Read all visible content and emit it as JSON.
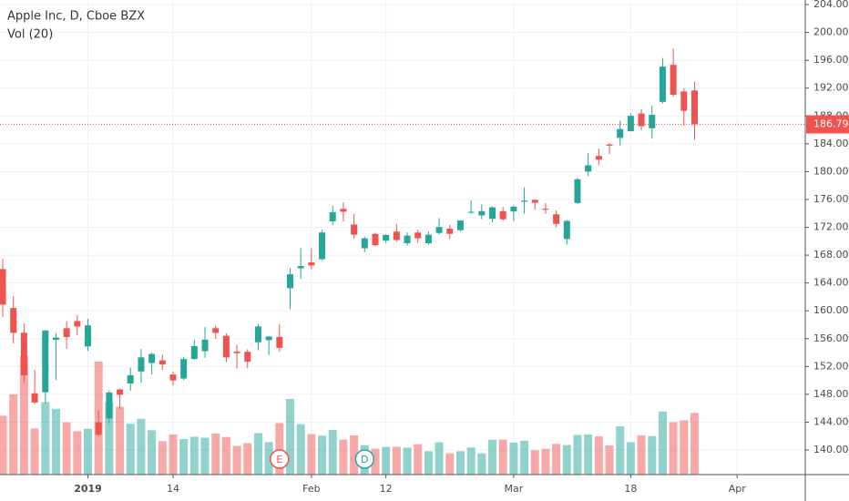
{
  "chart_data": {
    "type": "candlestick",
    "title": "Apple Inc, D, Cboe BZX",
    "subtitle": "Vol (20)",
    "open": [
      166,
      160.4,
      156.86,
      148.15,
      148.3,
      155.84,
      157.5,
      158.53,
      154.89,
      143.98,
      144.53,
      148.7,
      149.56,
      151.29,
      152.5,
      152.88,
      150.85,
      150.27,
      153.08,
      154.2,
      157.5,
      156.41,
      154.15,
      154.11,
      155.48,
      155.79,
      156.25,
      163.25,
      166.11,
      166.96,
      167.41,
      172.86,
      174.65,
      172.4,
      168.99,
      171.05,
      170.1,
      171.39,
      169.71,
      171.25,
      169.71,
      171.19,
      171.8,
      171.58,
      174.16,
      173.71,
      173.21,
      174.32,
      174.28,
      175.69,
      175.94,
      174.67,
      173.87,
      170.32,
      175.49,
      180,
      182.25,
      183.9,
      184.85,
      185.8,
      188.35,
      186.23,
      190.02,
      195.34,
      191.51,
      191.66
    ],
    "high": [
      167.45,
      162.11,
      158.16,
      151.55,
      157.23,
      156.77,
      158.52,
      159.36,
      158.85,
      145.72,
      148.55,
      148.83,
      151.82,
      154.53,
      153.97,
      153.7,
      151.27,
      153.39,
      155.88,
      157.66,
      157.88,
      156.73,
      155.14,
      154.48,
      158.13,
      156.33,
      158.13,
      166.15,
      169,
      168.98,
      171.66,
      175.08,
      175.57,
      173.94,
      170.66,
      171.21,
      171,
      172.48,
      171.26,
      171.7,
      171.44,
      173.32,
      172.37,
      173,
      175.87,
      175.3,
      175,
      174.91,
      175.15,
      177.75,
      176,
      175.49,
      174.44,
      173.07,
      179.12,
      182.67,
      183.3,
      184.1,
      187.33,
      188.39,
      188.99,
      189.49,
      196.33,
      197.69,
      191.98,
      192.88
    ],
    "low": [
      159.09,
      155.3,
      149.63,
      146.59,
      146.72,
      150.07,
      154.55,
      156.48,
      154.23,
      142,
      143.8,
      145.9,
      148.52,
      149.63,
      150.86,
      151.51,
      149.22,
      150.05,
      153,
      153.26,
      155.98,
      152.62,
      151.7,
      151.74,
      154.32,
      153.66,
      154.11,
      160.23,
      164.56,
      165.93,
      167.28,
      172.35,
      172.85,
      170.34,
      168.42,
      169.25,
      169.7,
      169.92,
      169.38,
      169.75,
      169.49,
      170.99,
      170.3,
      171.38,
      173.95,
      173.17,
      172.73,
      172.92,
      172.89,
      173.97,
      174.54,
      173.94,
      172.02,
      169.5,
      175.35,
      179.37,
      180.92,
      182.56,
      183.74,
      185.79,
      185.92,
      184.73,
      189.81,
      190.78,
      186.6,
      184.58
    ],
    "close": [
      160.89,
      156.83,
      150.73,
      146.83,
      157.17,
      156.15,
      156.23,
      157.74,
      157.92,
      142.19,
      148.26,
      147.93,
      150.75,
      153.31,
      153.8,
      152.29,
      150,
      153.07,
      154.94,
      155.86,
      156.82,
      153.3,
      153.92,
      152.7,
      157.76,
      156.3,
      154.68,
      165.25,
      166.44,
      166.52,
      171.25,
      174.18,
      174.24,
      170.94,
      170.41,
      169.43,
      170.89,
      170.18,
      170.8,
      170.42,
      170.93,
      172.03,
      171.06,
      172.97,
      174.23,
      174.33,
      174.87,
      173.15,
      174.97,
      175.85,
      175.53,
      174.52,
      172.5,
      172.91,
      178.9,
      180.91,
      181.71,
      183.73,
      186.12,
      188.02,
      186.53,
      188.16,
      195.09,
      191.05,
      188.74,
      186.79
    ],
    "volume": [
      47.6,
      64.8,
      95.7,
      37.2,
      58.6,
      53.1,
      42.3,
      35.0,
      37.0,
      91.3,
      58.6,
      54.8,
      41.0,
      45.1,
      35.8,
      27.0,
      32.4,
      28.7,
      30.6,
      29.8,
      33.1,
      30.4,
      23.1,
      25.4,
      33.5,
      26.2,
      41.6,
      61.1,
      40.7,
      32.7,
      31.5,
      36.1,
      28.2,
      31.7,
      23.8,
      20.9,
      22.3,
      22.5,
      21.8,
      24.6,
      18.97,
      26.1,
      17.2,
      18.9,
      21.9,
      17.1,
      28.1,
      28.2,
      25.9,
      27.4,
      19.7,
      20.8,
      24.8,
      23.9,
      32.0,
      32.5,
      31.0,
      23.6,
      39.0,
      26.2,
      31.6,
      31.0,
      51.0,
      42.4,
      43.8,
      49.8
    ],
    "up_color": "#26a69a",
    "down_color": "#ef5350",
    "xlim": [
      -0.26,
      75.4
    ],
    "xticks": [
      {
        "value": 8,
        "label": "2019"
      },
      {
        "value": 16,
        "label": "14"
      },
      {
        "value": 29,
        "label": "Feb"
      },
      {
        "value": 36,
        "label": "12"
      },
      {
        "value": 48,
        "label": "Mar"
      },
      {
        "value": 59,
        "label": "18"
      },
      {
        "value": 69,
        "label": "Apr"
      }
    ],
    "ylim": [
      136.47,
      204.66
    ],
    "yticks": [
      {
        "value": 140,
        "label": "140.00"
      },
      {
        "value": 144,
        "label": "144.00"
      },
      {
        "value": 148,
        "label": "148.00"
      },
      {
        "value": 152,
        "label": "152.00"
      },
      {
        "value": 156,
        "label": "156.00"
      },
      {
        "value": 160,
        "label": "160.00"
      },
      {
        "value": 164,
        "label": "164.00"
      },
      {
        "value": 168,
        "label": "168.00"
      },
      {
        "value": 172,
        "label": "172.00"
      },
      {
        "value": 176,
        "label": "176.00"
      },
      {
        "value": 180,
        "label": "180.00"
      },
      {
        "value": 184,
        "label": "184.00"
      },
      {
        "value": 188,
        "label": "188.00"
      },
      {
        "value": 192,
        "label": "192.00"
      },
      {
        "value": 196,
        "label": "196.00"
      },
      {
        "value": 200,
        "label": "200.00"
      },
      {
        "value": 204,
        "label": "204.00"
      }
    ],
    "grid": true,
    "last_price": 186.79,
    "events": [
      {
        "label": "E",
        "index": 26,
        "color": "#ef5350"
      },
      {
        "label": "D",
        "index": 34,
        "color": "#26a69a"
      }
    ]
  }
}
